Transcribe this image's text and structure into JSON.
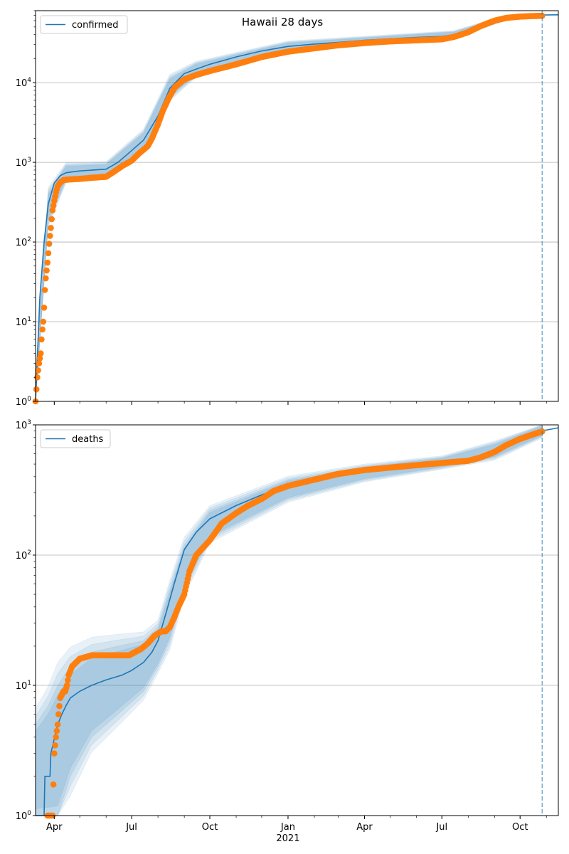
{
  "figure_title": "Hawaii 28 days",
  "colors": {
    "model": "#1f77b4",
    "observed": "#ff7f0e",
    "grid": "#b0b0b0",
    "band": "#1f77b4"
  },
  "x_axis": {
    "start": "2020-03-10",
    "end": "2021-11-15",
    "forecast_date": "2021-10-27",
    "ticks": [
      {
        "date": "2020-04-01",
        "label": "Apr"
      },
      {
        "date": "2020-07-01",
        "label": "Jul"
      },
      {
        "date": "2020-10-01",
        "label": "Oct"
      },
      {
        "date": "2021-01-01",
        "label": "Jan"
      },
      {
        "date": "2021-04-01",
        "label": "Apr"
      },
      {
        "date": "2021-07-01",
        "label": "Jul"
      },
      {
        "date": "2021-10-01",
        "label": "Oct"
      }
    ],
    "year_label": {
      "date": "2021-01-01",
      "label": "2021"
    }
  },
  "chart_data": [
    {
      "type": "line",
      "scale": "log",
      "ylim": [
        1,
        80000
      ],
      "grid": true,
      "legend": "top-left",
      "yticks": [
        {
          "value": 1,
          "base": "10",
          "exp": "0"
        },
        {
          "value": 10,
          "base": "10",
          "exp": "1"
        },
        {
          "value": 100,
          "base": "10",
          "exp": "2"
        },
        {
          "value": 1000,
          "base": "10",
          "exp": "3"
        },
        {
          "value": 10000,
          "base": "10",
          "exp": "4"
        }
      ],
      "series": [
        {
          "name": "confirmed",
          "kind": "model",
          "x": [
            "2020-03-10",
            "2020-03-15",
            "2020-03-20",
            "2020-03-25",
            "2020-04-01",
            "2020-04-08",
            "2020-04-15",
            "2020-05-01",
            "2020-06-01",
            "2020-06-15",
            "2020-07-01",
            "2020-07-15",
            "2020-08-01",
            "2020-08-15",
            "2020-09-01",
            "2020-09-15",
            "2020-10-01",
            "2020-11-01",
            "2020-12-01",
            "2021-01-01",
            "2021-02-01",
            "2021-03-01",
            "2021-04-01",
            "2021-05-01",
            "2021-06-01",
            "2021-07-01",
            "2021-07-15",
            "2021-08-01",
            "2021-08-15",
            "2021-09-01",
            "2021-09-15",
            "2021-10-01",
            "2021-10-15",
            "2021-10-27",
            "2021-11-15"
          ],
          "values": [
            1,
            20,
            100,
            300,
            550,
            680,
            740,
            780,
            820,
            1000,
            1400,
            1900,
            3800,
            8500,
            13000,
            14800,
            17000,
            21000,
            25000,
            28500,
            30500,
            32000,
            34000,
            35500,
            37000,
            38000,
            40000,
            44000,
            52000,
            60000,
            65500,
            68000,
            69500,
            70500,
            71000
          ]
        },
        {
          "name": "observed",
          "kind": "points",
          "x": [
            "2020-03-10",
            "2020-03-12",
            "2020-03-14",
            "2020-03-16",
            "2020-03-17",
            "2020-03-18",
            "2020-03-19",
            "2020-03-20",
            "2020-03-21",
            "2020-03-22",
            "2020-03-24",
            "2020-03-26",
            "2020-03-28",
            "2020-03-30",
            "2020-04-01",
            "2020-04-03",
            "2020-04-05",
            "2020-04-08",
            "2020-04-12",
            "2020-04-18",
            "2020-05-01",
            "2020-05-15",
            "2020-06-01",
            "2020-06-10",
            "2020-06-20",
            "2020-07-01",
            "2020-07-10",
            "2020-07-20",
            "2020-07-25",
            "2020-08-01",
            "2020-08-07",
            "2020-08-14",
            "2020-08-21",
            "2020-09-01",
            "2020-09-15",
            "2020-10-01",
            "2020-11-01",
            "2020-12-01",
            "2021-01-01",
            "2021-02-01",
            "2021-03-01",
            "2021-04-01",
            "2021-05-01",
            "2021-06-01",
            "2021-07-01",
            "2021-07-15",
            "2021-08-01",
            "2021-08-15",
            "2021-09-01",
            "2021-09-15",
            "2021-10-01",
            "2021-10-15",
            "2021-10-27"
          ],
          "values": [
            1,
            2,
            3,
            4,
            6,
            8,
            10,
            15,
            25,
            35,
            55,
            95,
            150,
            250,
            330,
            420,
            500,
            560,
            600,
            610,
            620,
            640,
            660,
            760,
            900,
            1050,
            1300,
            1600,
            2000,
            3000,
            4500,
            6500,
            8800,
            11000,
            12500,
            14000,
            17000,
            21000,
            24500,
            27000,
            29500,
            31500,
            33000,
            34000,
            35000,
            37500,
            43000,
            51000,
            60000,
            65000,
            67500,
            68500,
            69000
          ]
        }
      ],
      "band": {
        "x": [
          "2020-03-10",
          "2020-03-25",
          "2020-04-15",
          "2020-06-01",
          "2020-07-15",
          "2020-08-15",
          "2020-09-15",
          "2021-01-01",
          "2021-07-15",
          "2021-09-15",
          "2021-10-27"
        ],
        "lower": [
          1,
          180,
          600,
          680,
          1500,
          6500,
          12500,
          25000,
          36500,
          62000,
          67000
        ],
        "upper": [
          2,
          420,
          920,
          960,
          2400,
          11500,
          17500,
          32000,
          43500,
          69000,
          73500
        ]
      }
    },
    {
      "type": "line",
      "scale": "log",
      "ylim": [
        1,
        1000
      ],
      "grid": true,
      "legend": "top-left",
      "yticks": [
        {
          "value": 1,
          "base": "10",
          "exp": "0"
        },
        {
          "value": 10,
          "base": "10",
          "exp": "1"
        },
        {
          "value": 100,
          "base": "10",
          "exp": "2"
        },
        {
          "value": 1000,
          "base": "10",
          "exp": "3"
        }
      ],
      "series": [
        {
          "name": "deaths",
          "kind": "model",
          "x": [
            "2020-03-10",
            "2020-03-20",
            "2020-03-21",
            "2020-03-27",
            "2020-03-28",
            "2020-04-05",
            "2020-04-10",
            "2020-04-15",
            "2020-04-20",
            "2020-05-01",
            "2020-05-15",
            "2020-06-01",
            "2020-06-20",
            "2020-07-01",
            "2020-07-15",
            "2020-07-25",
            "2020-08-01",
            "2020-08-10",
            "2020-08-20",
            "2020-09-01",
            "2020-09-15",
            "2020-10-01",
            "2020-11-01",
            "2020-12-01",
            "2021-01-01",
            "2021-02-01",
            "2021-03-01",
            "2021-04-01",
            "2021-05-01",
            "2021-06-01",
            "2021-07-01",
            "2021-08-01",
            "2021-08-15",
            "2021-09-01",
            "2021-09-15",
            "2021-10-01",
            "2021-10-15",
            "2021-10-27",
            "2021-11-15"
          ],
          "values": [
            1,
            1,
            2,
            2,
            3,
            5,
            6,
            7,
            8,
            9,
            10,
            11,
            12,
            13,
            15,
            18,
            22,
            35,
            60,
            110,
            150,
            190,
            240,
            290,
            340,
            380,
            410,
            440,
            470,
            490,
            510,
            540,
            570,
            640,
            720,
            790,
            850,
            900,
            950
          ]
        },
        {
          "name": "observed",
          "kind": "points",
          "x": [
            "2020-03-24",
            "2020-03-30",
            "2020-04-01",
            "2020-04-03",
            "2020-04-05",
            "2020-04-06",
            "2020-04-08",
            "2020-04-12",
            "2020-04-14",
            "2020-04-16",
            "2020-04-18",
            "2020-04-22",
            "2020-05-01",
            "2020-05-15",
            "2020-06-01",
            "2020-06-15",
            "2020-06-28",
            "2020-07-05",
            "2020-07-12",
            "2020-07-20",
            "2020-07-28",
            "2020-08-05",
            "2020-08-10",
            "2020-08-15",
            "2020-08-20",
            "2020-08-25",
            "2020-09-01",
            "2020-09-07",
            "2020-09-15",
            "2020-10-01",
            "2020-10-15",
            "2020-11-01",
            "2020-11-15",
            "2020-12-01",
            "2020-12-15",
            "2021-01-01",
            "2021-02-01",
            "2021-03-01",
            "2021-04-01",
            "2021-05-01",
            "2021-06-01",
            "2021-07-01",
            "2021-08-01",
            "2021-08-15",
            "2021-09-01",
            "2021-09-15",
            "2021-10-01",
            "2021-10-15",
            "2021-10-27"
          ],
          "values": [
            1,
            1,
            3,
            4,
            5,
            6,
            8,
            9,
            9,
            10,
            12,
            14,
            16,
            17,
            17,
            17,
            17,
            18,
            19,
            21,
            24,
            26,
            26,
            28,
            33,
            40,
            50,
            75,
            100,
            130,
            175,
            210,
            240,
            270,
            310,
            340,
            380,
            420,
            450,
            470,
            490,
            510,
            530,
            560,
            620,
            700,
            780,
            840,
            890
          ]
        }
      ],
      "band": {
        "x": [
          "2020-03-10",
          "2020-03-25",
          "2020-04-05",
          "2020-04-20",
          "2020-05-15",
          "2020-06-15",
          "2020-07-15",
          "2020-08-01",
          "2020-08-15",
          "2020-09-01",
          "2020-10-01",
          "2021-01-01",
          "2021-04-01",
          "2021-07-01",
          "2021-09-01",
          "2021-10-27"
        ],
        "lower": [
          1,
          1,
          1,
          2,
          4,
          6,
          9,
          14,
          22,
          55,
          135,
          270,
          380,
          470,
          560,
          820
        ],
        "upper": [
          5,
          7,
          10,
          14,
          18,
          20,
          22,
          28,
          55,
          120,
          220,
          380,
          480,
          560,
          720,
          990
        ]
      }
    }
  ]
}
